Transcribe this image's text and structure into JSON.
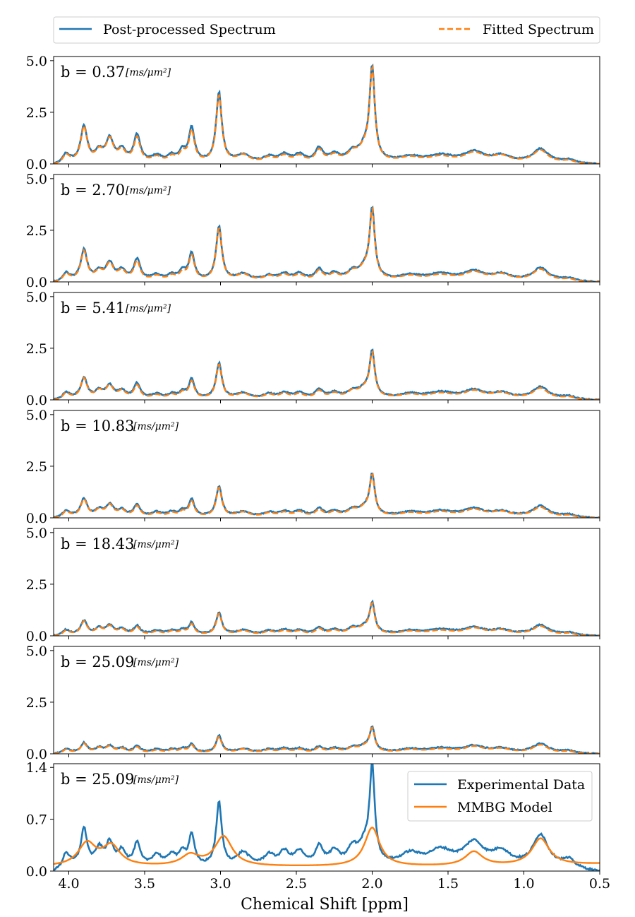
{
  "chart_data": {
    "type": "line",
    "xlabel": "Chemical Shift [ppm]",
    "xlim": [
      4.1,
      0.5
    ],
    "x_axis_reversed": true,
    "xticks": [
      4.0,
      3.5,
      3.0,
      2.5,
      2.0,
      1.5,
      1.0,
      0.5
    ],
    "colors": {
      "blue": "#1f77b4",
      "orange": "#ff7f0e"
    },
    "top_legend": {
      "placement": "top, outside panels",
      "entries": [
        {
          "label": "Post-processed Spectrum",
          "color": "#1f77b4",
          "style": "solid"
        },
        {
          "label": "Fitted Spectrum",
          "color": "#ff7f0e",
          "style": "dashed"
        }
      ]
    },
    "peaks_ppm": [
      4.02,
      3.9,
      3.8,
      3.73,
      3.65,
      3.55,
      3.42,
      3.32,
      3.25,
      3.19,
      3.01,
      2.85,
      2.68,
      2.58,
      2.48,
      2.35,
      2.25,
      2.13,
      2.05,
      2.0,
      1.75,
      1.55,
      1.33,
      1.15,
      0.89,
      0.7
    ],
    "panels": [
      {
        "label": "b = 0.37",
        "units": "[ms/μm²]",
        "ylim": [
          0,
          5.2
        ],
        "yticks": [
          "0.0",
          "2.5",
          "5.0"
        ],
        "peak_heights": [
          0.4,
          1.75,
          0.5,
          1.1,
          0.55,
          1.3,
          0.3,
          0.3,
          0.5,
          1.65,
          3.35,
          0.35,
          0.25,
          0.35,
          0.35,
          0.65,
          0.35,
          0.4,
          0.6,
          4.4,
          0.25,
          0.32,
          0.48,
          0.3,
          0.65,
          0.12
        ],
        "series": [
          {
            "role": "experimental",
            "color": "#1f77b4",
            "style": "solid"
          },
          {
            "role": "fitted",
            "color": "#ff7f0e",
            "style": "dashed"
          }
        ]
      },
      {
        "label": "b = 2.70",
        "units": "[ms/μm²]",
        "ylim": [
          0,
          5.2
        ],
        "yticks": [
          "0.0",
          "2.5",
          "5.0"
        ],
        "peak_heights": [
          0.35,
          1.45,
          0.4,
          0.8,
          0.45,
          1.0,
          0.25,
          0.25,
          0.4,
          1.3,
          2.6,
          0.3,
          0.22,
          0.3,
          0.3,
          0.5,
          0.3,
          0.35,
          0.5,
          3.3,
          0.22,
          0.3,
          0.42,
          0.28,
          0.6,
          0.1
        ],
        "series": [
          {
            "role": "experimental",
            "color": "#1f77b4",
            "style": "solid"
          },
          {
            "role": "fitted",
            "color": "#ff7f0e",
            "style": "dashed"
          }
        ]
      },
      {
        "label": "b = 5.41",
        "units": "[ms/μm²]",
        "ylim": [
          0,
          5.2
        ],
        "yticks": [
          "0.0",
          "2.5",
          "5.0"
        ],
        "peak_heights": [
          0.3,
          1.0,
          0.35,
          0.6,
          0.35,
          0.7,
          0.2,
          0.2,
          0.3,
          0.9,
          1.7,
          0.25,
          0.2,
          0.25,
          0.25,
          0.4,
          0.25,
          0.3,
          0.4,
          2.1,
          0.2,
          0.28,
          0.38,
          0.25,
          0.55,
          0.1
        ],
        "series": [
          {
            "role": "experimental",
            "color": "#1f77b4",
            "style": "solid"
          },
          {
            "role": "fitted",
            "color": "#ff7f0e",
            "style": "dashed"
          }
        ]
      },
      {
        "label": "b = 10.83",
        "units": "[ms/μm²]",
        "ylim": [
          0,
          5.2
        ],
        "yticks": [
          "0.0",
          "2.5",
          "5.0"
        ],
        "peak_heights": [
          0.28,
          0.85,
          0.3,
          0.55,
          0.3,
          0.55,
          0.2,
          0.2,
          0.25,
          0.8,
          1.45,
          0.22,
          0.18,
          0.22,
          0.25,
          0.35,
          0.22,
          0.28,
          0.35,
          1.9,
          0.18,
          0.25,
          0.35,
          0.22,
          0.5,
          0.08
        ],
        "series": [
          {
            "role": "experimental",
            "color": "#1f77b4",
            "style": "solid"
          },
          {
            "role": "fitted",
            "color": "#ff7f0e",
            "style": "dashed"
          }
        ]
      },
      {
        "label": "b = 18.43",
        "units": "[ms/μm²]",
        "ylim": [
          0,
          5.2
        ],
        "yticks": [
          "0.0",
          "2.5",
          "5.0"
        ],
        "peak_heights": [
          0.22,
          0.65,
          0.28,
          0.4,
          0.25,
          0.4,
          0.18,
          0.18,
          0.2,
          0.55,
          1.05,
          0.2,
          0.16,
          0.2,
          0.2,
          0.3,
          0.2,
          0.25,
          0.3,
          1.4,
          0.16,
          0.22,
          0.32,
          0.2,
          0.45,
          0.08
        ],
        "series": [
          {
            "role": "experimental",
            "color": "#1f77b4",
            "style": "solid"
          },
          {
            "role": "fitted",
            "color": "#ff7f0e",
            "style": "dashed"
          }
        ]
      },
      {
        "label": "b = 25.09",
        "units": "[ms/μm²]",
        "ylim": [
          0,
          5.2
        ],
        "yticks": [
          "0.0",
          "2.5",
          "5.0"
        ],
        "peak_heights": [
          0.18,
          0.45,
          0.22,
          0.3,
          0.2,
          0.3,
          0.15,
          0.15,
          0.18,
          0.4,
          0.8,
          0.18,
          0.14,
          0.18,
          0.18,
          0.25,
          0.18,
          0.2,
          0.25,
          1.1,
          0.15,
          0.2,
          0.3,
          0.18,
          0.42,
          0.08
        ],
        "series": [
          {
            "role": "experimental",
            "color": "#1f77b4",
            "style": "solid"
          },
          {
            "role": "fitted",
            "color": "#ff7f0e",
            "style": "dashed"
          }
        ]
      },
      {
        "label": "b = 25.09",
        "units": "[ms/μm²]",
        "ylim": [
          0,
          1.45
        ],
        "yticks": [
          "0.0",
          "0.7",
          "1.4"
        ],
        "legend": {
          "placement": "top-right",
          "entries": [
            {
              "label": "Experimental Data",
              "color": "#1f77b4",
              "style": "solid"
            },
            {
              "label": "MMBG Model",
              "color": "#ff7f0e",
              "style": "solid"
            }
          ]
        },
        "peak_heights": [
          0.18,
          0.5,
          0.22,
          0.3,
          0.2,
          0.3,
          0.15,
          0.15,
          0.18,
          0.42,
          0.85,
          0.18,
          0.14,
          0.18,
          0.18,
          0.25,
          0.18,
          0.2,
          0.25,
          1.25,
          0.15,
          0.2,
          0.3,
          0.18,
          0.42,
          0.08
        ],
        "mmbg_model": {
          "centers_ppm": [
            3.88,
            3.72,
            3.2,
            2.98,
            2.0,
            1.33,
            0.89
          ],
          "heights": [
            0.32,
            0.28,
            0.15,
            0.42,
            0.55,
            0.2,
            0.38
          ]
        },
        "series": [
          {
            "name": "Experimental Data",
            "color": "#1f77b4",
            "style": "solid"
          },
          {
            "name": "MMBG Model",
            "color": "#ff7f0e",
            "style": "solid"
          }
        ]
      }
    ]
  }
}
